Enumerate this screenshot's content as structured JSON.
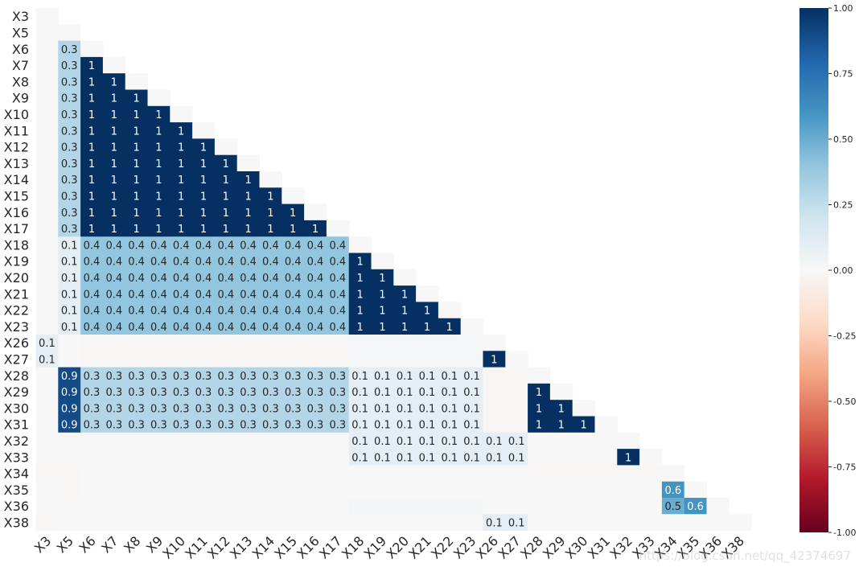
{
  "chart_data": {
    "type": "heatmap",
    "variables": [
      "X3",
      "X5",
      "X6",
      "X7",
      "X8",
      "X9",
      "X10",
      "X11",
      "X12",
      "X13",
      "X14",
      "X15",
      "X16",
      "X17",
      "X18",
      "X19",
      "X20",
      "X21",
      "X22",
      "X23",
      "X26",
      "X27",
      "X28",
      "X29",
      "X30",
      "X31",
      "X32",
      "X33",
      "X34",
      "X35",
      "X36",
      "X38"
    ],
    "matrix": [
      [
        0
      ],
      [
        0,
        0
      ],
      [
        0,
        0.3,
        0
      ],
      [
        0,
        0.3,
        1,
        0
      ],
      [
        0,
        0.3,
        1,
        1,
        0
      ],
      [
        0,
        0.3,
        1,
        1,
        1,
        0
      ],
      [
        0,
        0.3,
        1,
        1,
        1,
        1,
        0
      ],
      [
        0,
        0.3,
        1,
        1,
        1,
        1,
        1,
        0
      ],
      [
        0,
        0.3,
        1,
        1,
        1,
        1,
        1,
        1,
        0
      ],
      [
        0,
        0.3,
        1,
        1,
        1,
        1,
        1,
        1,
        1,
        0
      ],
      [
        0,
        0.3,
        1,
        1,
        1,
        1,
        1,
        1,
        1,
        1,
        0
      ],
      [
        0,
        0.3,
        1,
        1,
        1,
        1,
        1,
        1,
        1,
        1,
        1,
        0
      ],
      [
        0,
        0.3,
        1,
        1,
        1,
        1,
        1,
        1,
        1,
        1,
        1,
        1,
        0
      ],
      [
        0,
        0.3,
        1,
        1,
        1,
        1,
        1,
        1,
        1,
        1,
        1,
        1,
        1,
        0
      ],
      [
        0,
        0.1,
        0.4,
        0.4,
        0.4,
        0.4,
        0.4,
        0.4,
        0.4,
        0.4,
        0.4,
        0.4,
        0.4,
        0.4,
        0
      ],
      [
        0,
        0.1,
        0.4,
        0.4,
        0.4,
        0.4,
        0.4,
        0.4,
        0.4,
        0.4,
        0.4,
        0.4,
        0.4,
        0.4,
        1,
        0
      ],
      [
        0,
        0.1,
        0.4,
        0.4,
        0.4,
        0.4,
        0.4,
        0.4,
        0.4,
        0.4,
        0.4,
        0.4,
        0.4,
        0.4,
        1,
        1,
        0
      ],
      [
        0,
        0.1,
        0.4,
        0.4,
        0.4,
        0.4,
        0.4,
        0.4,
        0.4,
        0.4,
        0.4,
        0.4,
        0.4,
        0.4,
        1,
        1,
        1,
        0
      ],
      [
        0,
        0.1,
        0.4,
        0.4,
        0.4,
        0.4,
        0.4,
        0.4,
        0.4,
        0.4,
        0.4,
        0.4,
        0.4,
        0.4,
        1,
        1,
        1,
        1,
        0
      ],
      [
        0,
        0.1,
        0.4,
        0.4,
        0.4,
        0.4,
        0.4,
        0.4,
        0.4,
        0.4,
        0.4,
        0.4,
        0.4,
        0.4,
        1,
        1,
        1,
        1,
        1,
        0
      ],
      [
        0.1,
        0,
        -0.01,
        -0.01,
        -0.01,
        -0.01,
        -0.01,
        -0.01,
        -0.01,
        -0.01,
        -0.01,
        -0.01,
        -0.01,
        -0.01,
        0.01,
        0.01,
        0.01,
        0.01,
        0.01,
        0.01,
        0
      ],
      [
        0.1,
        0,
        -0.01,
        -0.01,
        -0.01,
        -0.01,
        -0.01,
        -0.01,
        -0.01,
        -0.01,
        -0.01,
        -0.01,
        -0.01,
        -0.01,
        0.01,
        0.01,
        0.01,
        0.01,
        0.01,
        0.01,
        1,
        0
      ],
      [
        0,
        0.9,
        0.3,
        0.3,
        0.3,
        0.3,
        0.3,
        0.3,
        0.3,
        0.3,
        0.3,
        0.3,
        0.3,
        0.3,
        0.1,
        0.1,
        0.1,
        0.1,
        0.1,
        0.1,
        -0.01,
        -0.01,
        0
      ],
      [
        0,
        0.9,
        0.3,
        0.3,
        0.3,
        0.3,
        0.3,
        0.3,
        0.3,
        0.3,
        0.3,
        0.3,
        0.3,
        0.3,
        0.1,
        0.1,
        0.1,
        0.1,
        0.1,
        0.1,
        -0.01,
        -0.01,
        1,
        0
      ],
      [
        0,
        0.9,
        0.3,
        0.3,
        0.3,
        0.3,
        0.3,
        0.3,
        0.3,
        0.3,
        0.3,
        0.3,
        0.3,
        0.3,
        0.1,
        0.1,
        0.1,
        0.1,
        0.1,
        0.1,
        -0.01,
        -0.01,
        1,
        1,
        0
      ],
      [
        0,
        0.9,
        0.3,
        0.3,
        0.3,
        0.3,
        0.3,
        0.3,
        0.3,
        0.3,
        0.3,
        0.3,
        0.3,
        0.3,
        0.1,
        0.1,
        0.1,
        0.1,
        0.1,
        0.1,
        -0.01,
        -0.01,
        1,
        1,
        1,
        0
      ],
      [
        0,
        0,
        0,
        0,
        0,
        0,
        0,
        0,
        0,
        0,
        0,
        0,
        0,
        0,
        0.1,
        0.1,
        0.1,
        0.1,
        0.1,
        0.1,
        0.1,
        0.1,
        0,
        0,
        0,
        0,
        0
      ],
      [
        0,
        0,
        0,
        0,
        0,
        0,
        0,
        0,
        0,
        0,
        0,
        0,
        0,
        0,
        0.1,
        0.1,
        0.1,
        0.1,
        0.1,
        0.1,
        0.1,
        0.1,
        0,
        0,
        0,
        0,
        1,
        0
      ],
      [
        -0.01,
        -0.01,
        0,
        0,
        0,
        0,
        0,
        0,
        0,
        0,
        0,
        0,
        0,
        0,
        0,
        0,
        0,
        0,
        0,
        0,
        0,
        0,
        -0.01,
        -0.01,
        -0.01,
        -0.01,
        -0.01,
        -0.01,
        0
      ],
      [
        0,
        -0.01,
        0,
        0,
        0,
        0,
        0,
        0,
        0,
        0,
        0,
        0,
        0,
        0,
        0,
        0,
        0,
        0,
        0,
        0,
        0,
        0,
        0,
        0,
        0,
        0,
        0,
        0,
        0.6,
        0
      ],
      [
        0,
        0,
        0,
        0,
        0,
        0,
        0,
        0,
        0,
        0,
        0,
        0,
        0,
        0,
        0.02,
        0.02,
        0.02,
        0.02,
        0.02,
        0.02,
        0,
        0,
        0,
        0,
        0,
        0,
        0,
        0,
        0.5,
        0.6,
        0
      ],
      [
        -0.01,
        0,
        0,
        0,
        0,
        0,
        0,
        0,
        0,
        0,
        0,
        0,
        0,
        0,
        0,
        0,
        0,
        0,
        0,
        0,
        0.1,
        0.1,
        0,
        0,
        0,
        0,
        0,
        0,
        0,
        0,
        0,
        0
      ]
    ],
    "colorbar": {
      "range": [
        -1,
        1
      ],
      "ticks": [
        "1.00",
        "0.75",
        "0.50",
        "0.25",
        "0.00",
        "-0.25",
        "-0.50",
        "-0.75",
        "-1.00"
      ],
      "colormap": [
        "#67001f",
        "#b2182b",
        "#d6604d",
        "#f4a582",
        "#fddbc7",
        "#f7f7f7",
        "#d1e5f0",
        "#92c5de",
        "#4393c3",
        "#2166ac",
        "#053061"
      ]
    },
    "title": "",
    "xlabel": "",
    "ylabel": ""
  },
  "watermark": "https://blog.csdn.net/qq_42374697"
}
